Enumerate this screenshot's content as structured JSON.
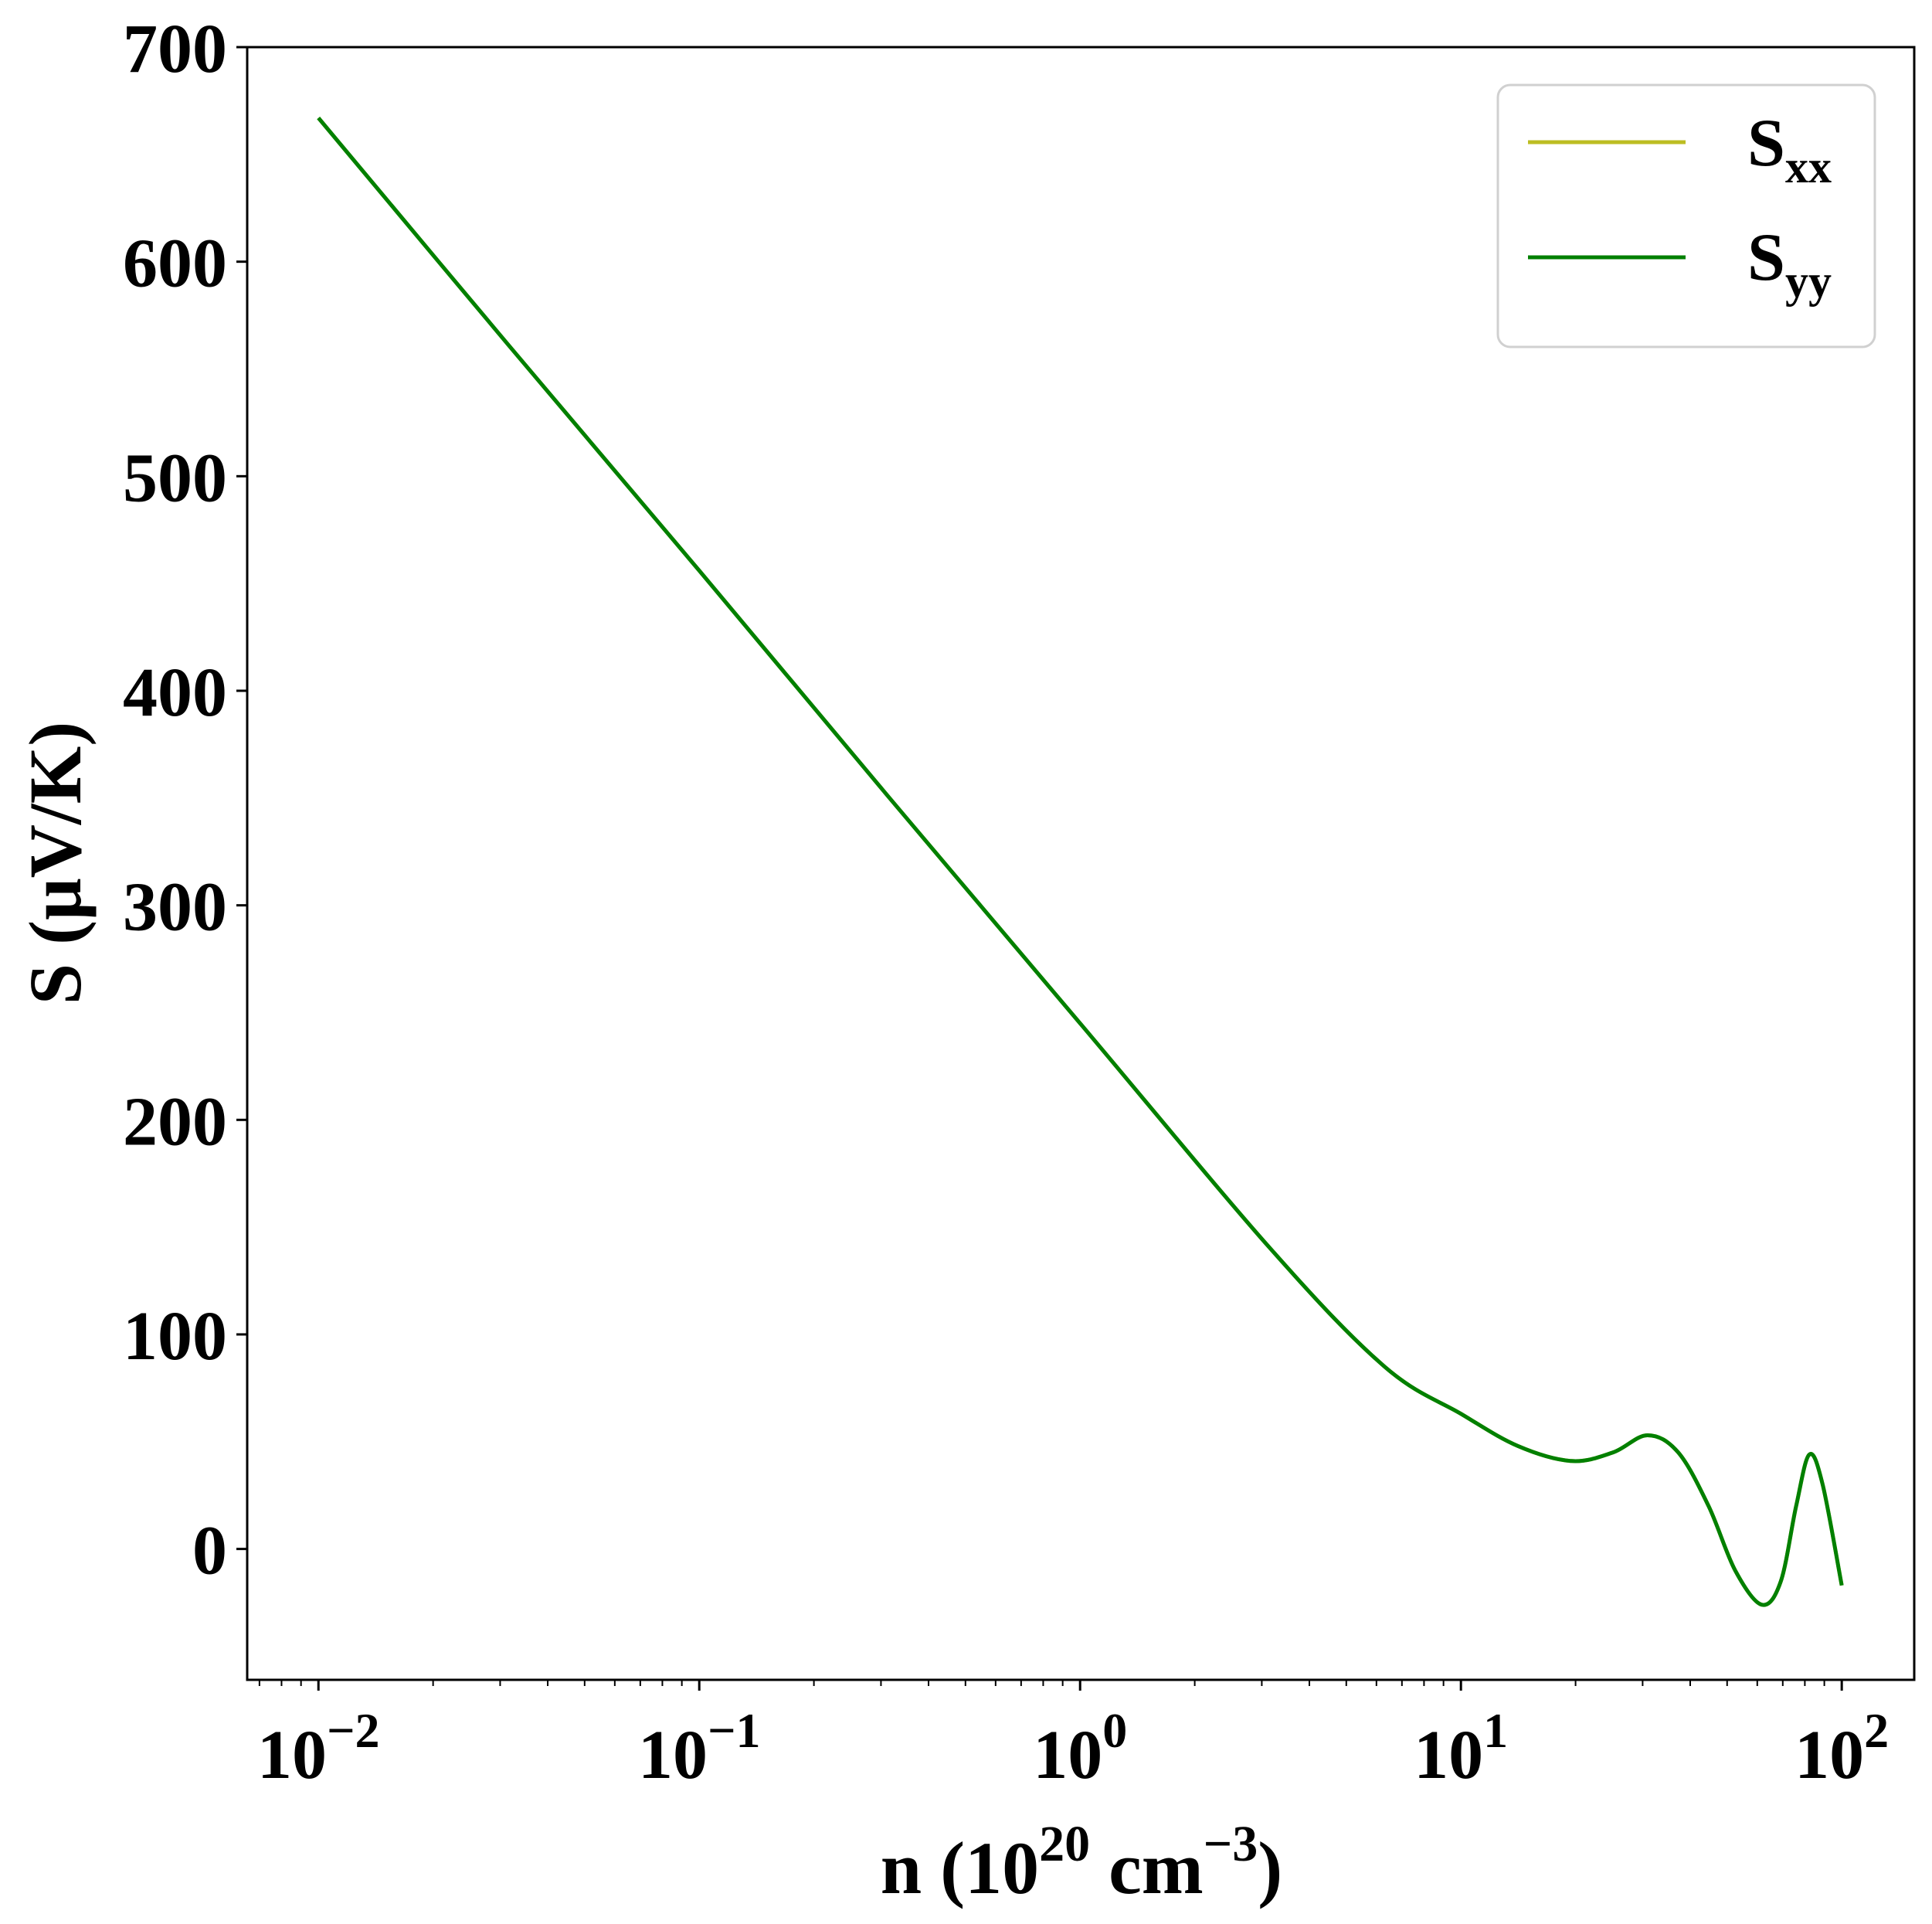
{
  "chart_data": {
    "type": "line",
    "xlabel": "n (10^20 cm^-3)",
    "xlabel_parts": {
      "main": "n (10",
      "sup1": "20",
      "mid": " cm",
      "sup2": "−3",
      "end": ")"
    },
    "ylabel": "S (μV/K)",
    "xscale": "log",
    "xlim": [
      0.0065,
      155
    ],
    "ylim": [
      -61,
      700
    ],
    "grid": false,
    "legend_position": "top-right",
    "x_ticks": [
      {
        "value": 0.01,
        "base": "10",
        "exp": "−2"
      },
      {
        "value": 0.1,
        "base": "10",
        "exp": "−1"
      },
      {
        "value": 1,
        "base": "10",
        "exp": "0"
      },
      {
        "value": 10,
        "base": "10",
        "exp": "1"
      },
      {
        "value": 100,
        "base": "10",
        "exp": "2"
      }
    ],
    "y_ticks": [
      0,
      100,
      200,
      300,
      400,
      500,
      600,
      700
    ],
    "x": [
      0.01,
      0.0316,
      0.1,
      0.316,
      1,
      3.16,
      6.3,
      10,
      14.1,
      19.5,
      25.1,
      30.9,
      37.2,
      44.7,
      52.5,
      61.7,
      69.2,
      75.9,
      82.2,
      89.1,
      100
    ],
    "series": [
      {
        "name": "S",
        "sub": "xx",
        "color": "#bcbd22",
        "values": [
          667,
          561,
          456,
          350,
          245,
          140,
          85,
          63,
          48,
          41,
          45,
          53,
          45,
          20,
          -10,
          -26,
          -15,
          20,
          44,
          30,
          -17
        ]
      },
      {
        "name": "S",
        "sub": "yy",
        "color": "#008000",
        "values": [
          667,
          561,
          456,
          350,
          245,
          140,
          85,
          63,
          48,
          41,
          45,
          53,
          45,
          20,
          -10,
          -26,
          -15,
          20,
          44,
          30,
          -17
        ]
      }
    ]
  }
}
